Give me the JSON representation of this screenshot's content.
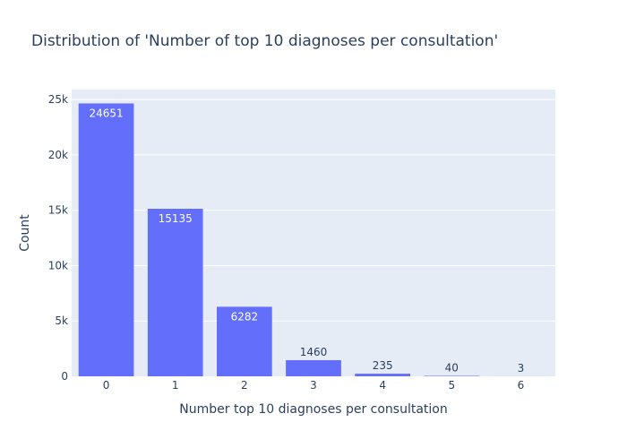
{
  "chart_data": {
    "type": "bar",
    "title": "Distribution of 'Number of top 10 diagnoses per consultation'",
    "xlabel": "Number top 10 diagnoses per consultation",
    "ylabel": "Count",
    "categories": [
      "0",
      "1",
      "2",
      "3",
      "4",
      "5",
      "6"
    ],
    "values": [
      24651,
      15135,
      6282,
      1460,
      235,
      40,
      3
    ],
    "data_labels": [
      "24651",
      "15135",
      "6282",
      "1460",
      "235",
      "40",
      "3"
    ],
    "ylim": [
      0,
      25900
    ],
    "yticks": [
      0,
      5000,
      10000,
      15000,
      20000,
      25000
    ],
    "ytick_labels": [
      "0",
      "5k",
      "10k",
      "15k",
      "20k",
      "25k"
    ],
    "grid": true,
    "legend": "none",
    "colors": {
      "bar": "#636efa",
      "plot_bg": "#e5ecf6",
      "grid": "#ffffff",
      "text": "#2a3f5f"
    }
  }
}
